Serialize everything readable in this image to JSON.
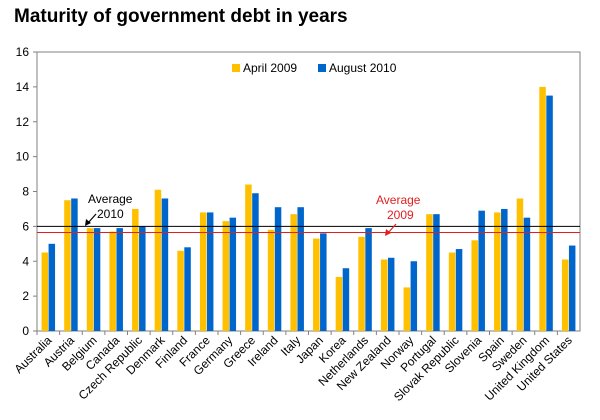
{
  "chart_data": {
    "type": "bar",
    "title": "Maturity of government debt in years",
    "ylim": [
      0,
      16
    ],
    "yticks": [
      0,
      2,
      4,
      6,
      8,
      10,
      12,
      14,
      16
    ],
    "grid": false,
    "legend_position": "top",
    "categories": [
      "Australia",
      "Austria",
      "Belgium",
      "Canada",
      "Czech Republic",
      "Denmark",
      "Finland",
      "France",
      "Germany",
      "Greece",
      "Ireland",
      "Italy",
      "Japan",
      "Korea",
      "Netherlands",
      "New Zealand",
      "Norway",
      "Portugal",
      "Slovak Republic",
      "Slovenia",
      "Spain",
      "Sweden",
      "United Kingdom",
      "United States"
    ],
    "series": [
      {
        "name": "April 2009",
        "color": "#FFC000",
        "values": [
          4.5,
          7.5,
          5.9,
          5.7,
          7.0,
          8.1,
          4.6,
          6.8,
          6.3,
          8.4,
          5.8,
          6.7,
          5.3,
          3.1,
          5.4,
          4.1,
          2.5,
          6.7,
          4.5,
          5.2,
          6.8,
          7.6,
          14.0,
          4.1
        ]
      },
      {
        "name": "August 2010",
        "color": "#0066CC",
        "values": [
          5.0,
          7.6,
          5.9,
          5.9,
          6.0,
          7.6,
          4.8,
          6.8,
          6.5,
          7.9,
          7.1,
          7.1,
          5.6,
          3.6,
          5.9,
          4.2,
          4.0,
          6.7,
          4.7,
          6.9,
          7.0,
          6.5,
          13.5,
          4.9
        ]
      }
    ],
    "reference_lines": [
      {
        "label_line1": "Average",
        "label_line2": "2010",
        "value": 6.0,
        "color": "#000000"
      },
      {
        "label_line1": "Average",
        "label_line2": "2009",
        "value": 5.65,
        "color": "#E02020"
      }
    ]
  }
}
